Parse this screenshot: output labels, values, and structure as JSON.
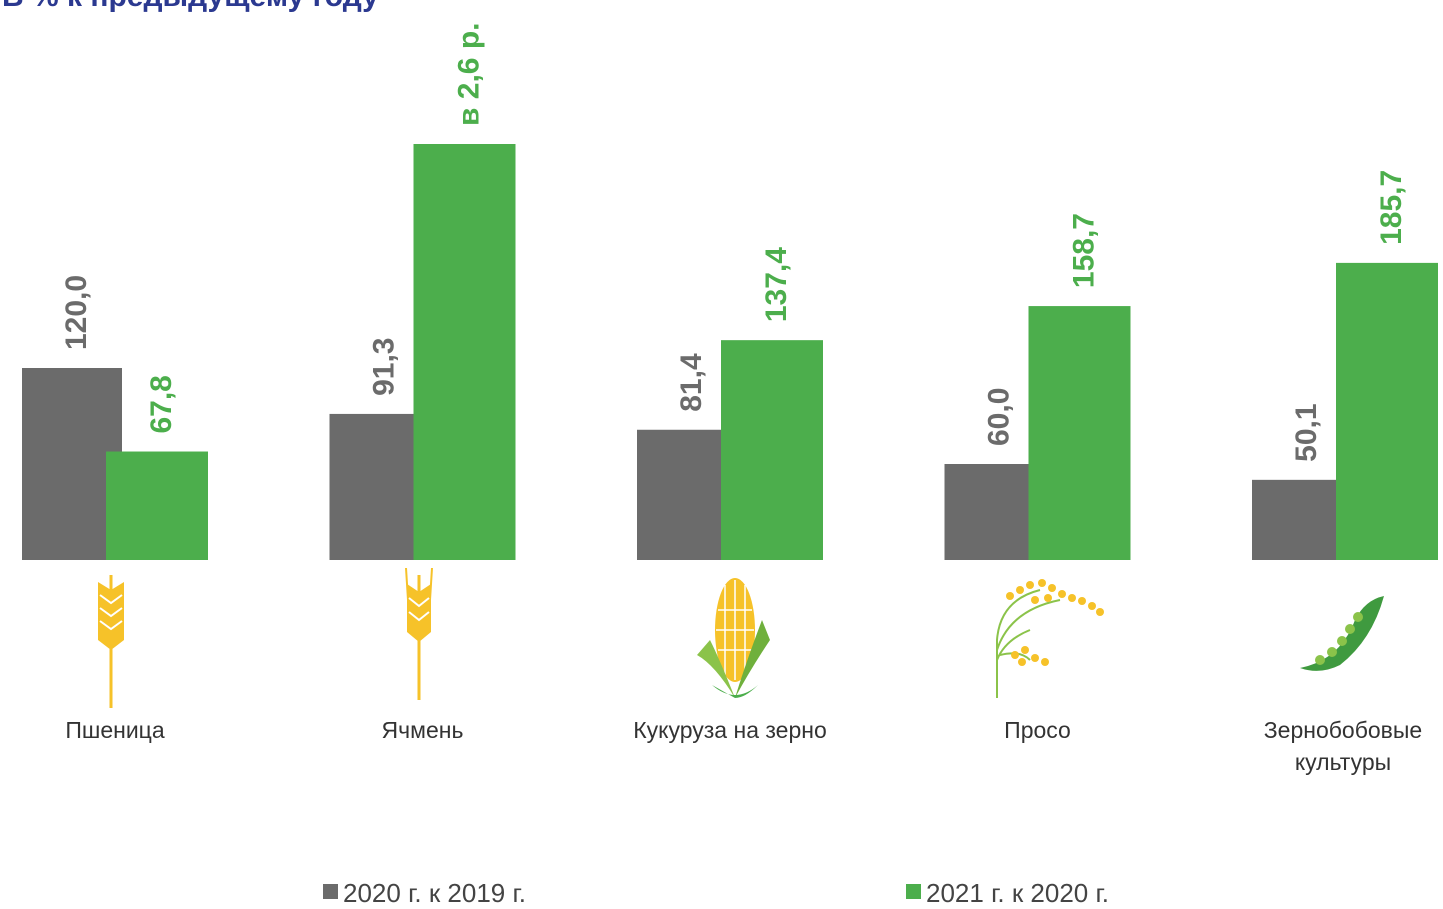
{
  "chart_data": {
    "type": "bar",
    "title": "В % к предыдущему году",
    "categories": [
      "Пшеница",
      "Ячмень",
      "Кукуруза на зерно",
      "Просо",
      "Зернобобовые культуры"
    ],
    "series": [
      {
        "name": "2020 г. к 2019 г.",
        "color": "#6b6b6b",
        "values": [
          120.0,
          91.3,
          81.4,
          60.0,
          50.1
        ],
        "value_labels": [
          "120,0",
          "91,3",
          "81,4",
          "60,0",
          "50,1"
        ]
      },
      {
        "name": "2021 г. к 2020 г.",
        "color": "#4cae4c",
        "values": [
          67.8,
          260,
          137.4,
          158.7,
          185.7
        ],
        "value_labels": [
          "67,8",
          "в 2,6 р.",
          "137,4",
          "158,7",
          "185,7"
        ]
      }
    ]
  }
}
